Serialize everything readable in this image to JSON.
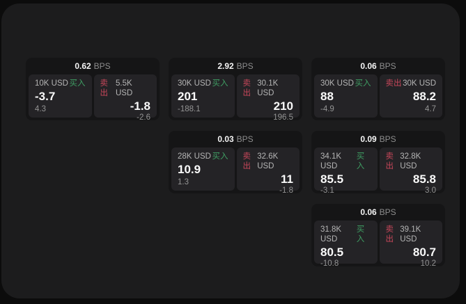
{
  "colors": {
    "background": "#0c0c0c",
    "panel": "#1c1c1d",
    "card": "#151516",
    "tile": "#242326",
    "buy_accent": "#3f9e63",
    "sell_accent": "#c8475a",
    "primary_text": "#f5f5f5",
    "muted_text": "#8d8d8d"
  },
  "labels": {
    "bps_unit": "BPS",
    "buy": "买入",
    "sell": "卖出"
  },
  "cards": [
    {
      "bps": "0.62",
      "buy": {
        "amount": "10K USD",
        "price": "-3.7",
        "delta": "4.3"
      },
      "sell": {
        "amount": "5.5K USD",
        "price": "-1.8",
        "delta": "-2.6"
      }
    },
    {
      "bps": "2.92",
      "buy": {
        "amount": "30K USD",
        "price": "201",
        "delta": "-188.1"
      },
      "sell": {
        "amount": "30.1K USD",
        "price": "210",
        "delta": "196.5"
      }
    },
    {
      "bps": "0.06",
      "buy": {
        "amount": "30K USD",
        "price": "88",
        "delta": "-4.9"
      },
      "sell": {
        "amount": "30K USD",
        "price": "88.2",
        "delta": "4.7"
      }
    },
    {
      "bps": "0.03",
      "buy": {
        "amount": "28K USD",
        "price": "10.9",
        "delta": "1.3"
      },
      "sell": {
        "amount": "32.6K USD",
        "price": "11",
        "delta": "-1.8"
      }
    },
    {
      "bps": "0.09",
      "buy": {
        "amount": "34.1K USD",
        "price": "85.5",
        "delta": "-3.1"
      },
      "sell": {
        "amount": "32.8K USD",
        "price": "85.8",
        "delta": "3.0"
      }
    },
    {
      "bps": "0.06",
      "buy": {
        "amount": "31.8K USD",
        "price": "80.5",
        "delta": "-10.8"
      },
      "sell": {
        "amount": "39.1K USD",
        "price": "80.7",
        "delta": "10.2"
      }
    }
  ]
}
